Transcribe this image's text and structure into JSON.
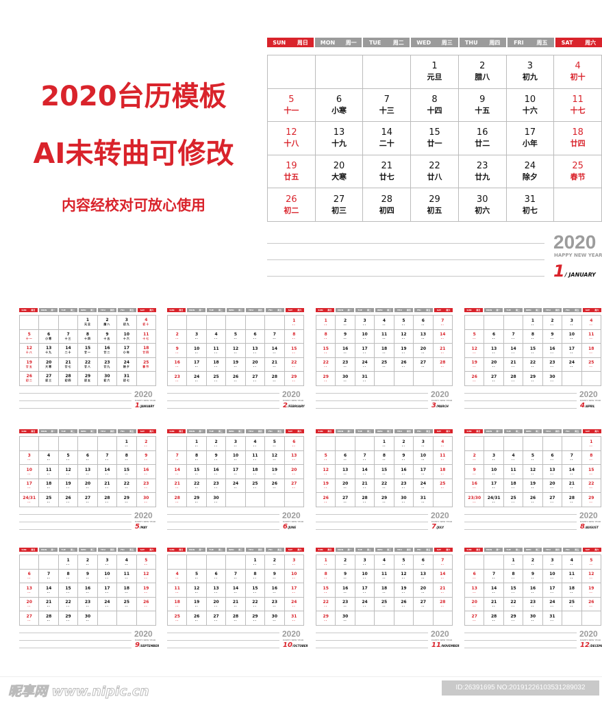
{
  "title": {
    "line1": "2020台历模板",
    "line2": "AI未转曲可修改",
    "line3": "内容经校对可放心使用"
  },
  "weekdays": [
    {
      "en": "SUN",
      "cn": "周日"
    },
    {
      "en": "MON",
      "cn": "周一"
    },
    {
      "en": "TUE",
      "cn": "周二"
    },
    {
      "en": "WED",
      "cn": "周三"
    },
    {
      "en": "THU",
      "cn": "周四"
    },
    {
      "en": "FRI",
      "cn": "周五"
    },
    {
      "en": "SAT",
      "cn": "周六"
    }
  ],
  "year": "2020",
  "tagline": "HAPPY NEW YEAR",
  "colors": {
    "accent": "#d9232b",
    "header_gray": "#9b9b9b"
  },
  "january": {
    "month_number": "1",
    "month_name": "JANUARY",
    "lunar": [
      "元旦",
      "腊八",
      "初九",
      "初十",
      "十一",
      "小寒",
      "十三",
      "十四",
      "十五",
      "十六",
      "十七",
      "十八",
      "十九",
      "二十",
      "廿一",
      "廿二",
      "小年",
      "廿四",
      "廿五",
      "大寒",
      "廿七",
      "廿八",
      "廿九",
      "除夕",
      "春节",
      "初二",
      "初三",
      "初四",
      "初五",
      "初六",
      "初七"
    ]
  },
  "months": [
    "JANUARY",
    "FEBRUARY",
    "MARCH",
    "APRIL",
    "MAY",
    "JUNE",
    "JULY",
    "AUGUST",
    "SEPTEMBER",
    "OCTOBER",
    "NOVEMBER",
    "DECEMBER"
  ],
  "footer": {
    "logo": "昵享网 www.nipic.cn",
    "id_text": "ID:26391695 NO:20191226103531289032"
  }
}
